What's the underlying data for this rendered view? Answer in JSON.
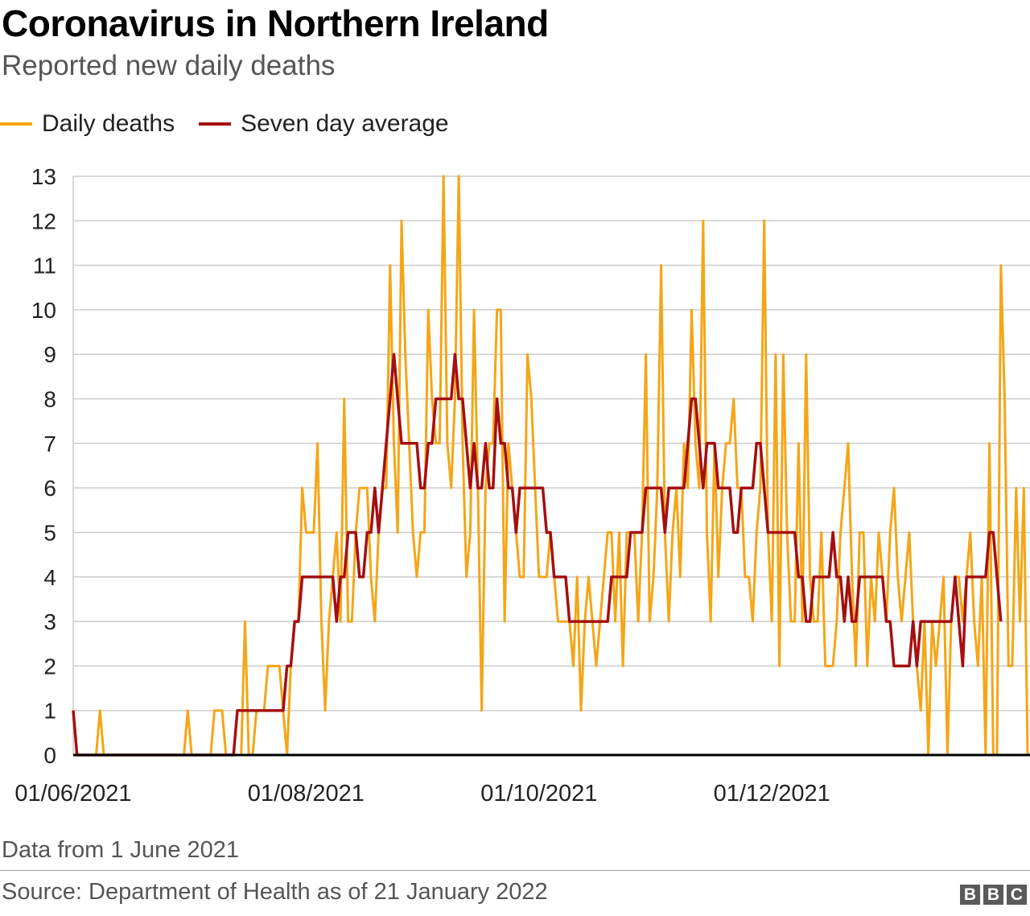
{
  "title": "Coronavirus in Northern Ireland",
  "subtitle": "Reported new daily deaths",
  "note": "Data from 1 June 2021",
  "source": "Source: Department of Health as of 21 January 2022",
  "logo": [
    "B",
    "B",
    "C"
  ],
  "colors": {
    "daily": "#f5a516",
    "average": "#a50f0f",
    "grid": "#cccccc",
    "axis": "#000000"
  },
  "legend": [
    {
      "label": "Daily deaths",
      "color": "#f5a516"
    },
    {
      "label": "Seven day average",
      "color": "#a50f0f"
    }
  ],
  "chart_data": {
    "type": "line",
    "title": "Coronavirus in Northern Ireland",
    "subtitle": "Reported new daily deaths",
    "x_start": "01/06/2021",
    "x_ticks": [
      "01/06/2021",
      "01/08/2021",
      "01/10/2021",
      "01/12/2021"
    ],
    "ylim": [
      0,
      13
    ],
    "y_ticks": [
      0,
      1,
      2,
      3,
      4,
      5,
      6,
      7,
      8,
      9,
      10,
      11,
      12,
      13
    ],
    "grid": true,
    "legend_position": "top-left",
    "series": [
      {
        "name": "Daily deaths",
        "color": "#f5a516",
        "values": [
          1,
          0,
          0,
          0,
          0,
          0,
          0,
          1,
          0,
          0,
          0,
          0,
          0,
          0,
          0,
          0,
          0,
          0,
          0,
          0,
          0,
          0,
          0,
          0,
          0,
          0,
          0,
          0,
          0,
          0,
          1,
          0,
          0,
          0,
          0,
          0,
          0,
          1,
          1,
          1,
          0,
          0,
          0,
          0,
          0,
          3,
          0,
          0,
          1,
          1,
          1,
          2,
          2,
          2,
          2,
          1,
          0,
          2,
          3,
          3,
          6,
          5,
          5,
          5,
          7,
          3,
          1,
          3,
          4,
          5,
          3,
          8,
          3,
          3,
          5,
          6,
          6,
          6,
          4,
          3,
          5,
          6,
          6,
          11,
          7,
          5,
          12,
          9,
          7,
          5,
          4,
          5,
          5,
          10,
          8,
          7,
          7,
          13,
          7,
          6,
          8,
          13,
          7,
          4,
          5,
          10,
          6,
          1,
          6,
          7,
          7,
          10,
          10,
          3,
          7,
          6,
          5,
          4,
          4,
          9,
          8,
          6,
          4,
          4,
          4,
          5,
          4,
          3,
          3,
          3,
          3,
          2,
          4,
          1,
          3,
          4,
          3,
          2,
          3,
          4,
          5,
          5,
          3,
          5,
          2,
          5,
          5,
          5,
          3,
          5,
          9,
          3,
          4,
          6,
          11,
          5,
          3,
          5,
          6,
          4,
          7,
          6,
          10,
          7,
          6,
          12,
          5,
          3,
          7,
          4,
          6,
          7,
          7,
          8,
          6,
          6,
          4,
          4,
          3,
          5,
          6,
          12,
          5,
          3,
          9,
          2,
          9,
          5,
          3,
          3,
          7,
          3,
          9,
          4,
          3,
          3,
          5,
          2,
          2,
          2,
          3,
          5,
          6,
          7,
          4,
          2,
          5,
          5,
          2,
          4,
          3,
          5,
          4,
          3,
          5,
          6,
          4,
          3,
          4,
          5,
          3,
          2,
          1,
          3,
          0,
          3,
          2,
          3,
          4,
          0,
          3,
          4,
          4,
          3,
          4,
          5,
          3,
          2,
          4,
          0,
          7,
          0,
          0,
          11,
          8,
          2,
          2,
          6,
          3,
          6,
          0
        ],
        "name_label": "Daily deaths"
      },
      {
        "name": "Seven day average",
        "color": "#a50f0f",
        "values": [
          1,
          0,
          0,
          0,
          0,
          0,
          0,
          0,
          0,
          0,
          0,
          0,
          0,
          0,
          0,
          0,
          0,
          0,
          0,
          0,
          0,
          0,
          0,
          0,
          0,
          0,
          0,
          0,
          0,
          0,
          0,
          0,
          0,
          0,
          0,
          0,
          0,
          0,
          0,
          0,
          0,
          0,
          0,
          1,
          1,
          1,
          1,
          1,
          1,
          1,
          1,
          1,
          1,
          1,
          1,
          1,
          2,
          2,
          3,
          3,
          4,
          4,
          4,
          4,
          4,
          4,
          4,
          4,
          4,
          3,
          4,
          4,
          5,
          5,
          5,
          4,
          4,
          5,
          5,
          6,
          5,
          6,
          7,
          8,
          9,
          8,
          7,
          7,
          7,
          7,
          7,
          6,
          6,
          7,
          7,
          8,
          8,
          8,
          8,
          8,
          9,
          8,
          8,
          7,
          6,
          7,
          6,
          6,
          7,
          6,
          6,
          8,
          7,
          7,
          6,
          6,
          5,
          6,
          6,
          6,
          6,
          6,
          6,
          6,
          5,
          5,
          4,
          4,
          4,
          4,
          3,
          3,
          3,
          3,
          3,
          3,
          3,
          3,
          3,
          3,
          3,
          4,
          4,
          4,
          4,
          4,
          5,
          5,
          5,
          5,
          6,
          6,
          6,
          6,
          6,
          5,
          6,
          6,
          6,
          6,
          6,
          7,
          8,
          8,
          7,
          6,
          7,
          7,
          7,
          6,
          6,
          6,
          6,
          5,
          5,
          6,
          6,
          6,
          6,
          7,
          7,
          6,
          5,
          5,
          5,
          5,
          5,
          5,
          5,
          5,
          4,
          4,
          3,
          3,
          4,
          4,
          4,
          4,
          4,
          5,
          4,
          4,
          3,
          4,
          3,
          3,
          4,
          4,
          4,
          4,
          4,
          4,
          4,
          3,
          3,
          2,
          2,
          2,
          2,
          2,
          3,
          2,
          3,
          3,
          3,
          3,
          3,
          3,
          3,
          3,
          3,
          4,
          3,
          2,
          4,
          4,
          4,
          4,
          4,
          4,
          5,
          5,
          4,
          3
        ]
      }
    ]
  }
}
